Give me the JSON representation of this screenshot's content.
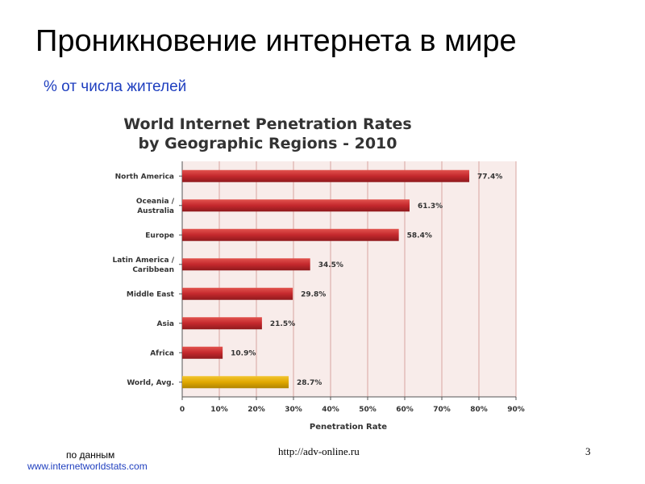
{
  "slide": {
    "title": "Проникновение интернета в мире",
    "subtitle": "% от числа жителей",
    "footer_note": "по данным",
    "footer_source": "www.internetworldstats.com",
    "footer_url": "http://adv-online.ru",
    "page_number": "3"
  },
  "chart_data": {
    "type": "bar",
    "orientation": "horizontal",
    "title_lines": [
      "World Internet Penetration Rates",
      "by Geographic Regions - 2010"
    ],
    "xlabel": "Penetration Rate",
    "ylabel": "",
    "xlim": [
      0,
      90
    ],
    "xticks": [
      "0",
      "10%",
      "20%",
      "30%",
      "40%",
      "50%",
      "60%",
      "70%",
      "80%",
      "90%"
    ],
    "grid": true,
    "categories": [
      [
        "North America"
      ],
      [
        "Oceania  /",
        "Australia"
      ],
      [
        "Europe"
      ],
      [
        "Latin America /",
        "Caribbean"
      ],
      [
        "Middle East"
      ],
      [
        "Asia"
      ],
      [
        "Africa"
      ],
      [
        "World, Avg."
      ]
    ],
    "values": [
      77.4,
      61.3,
      58.4,
      34.5,
      29.8,
      21.5,
      10.9,
      28.7
    ],
    "value_labels": [
      "77.4%",
      "61.3%",
      "58.4%",
      "34.5%",
      "29.8%",
      "21.5%",
      "10.9%",
      "28.7%"
    ],
    "colors": {
      "bar": "#c4282d",
      "bar_highlight": "#e0a800",
      "plot_background": "#f8ecea",
      "grid": "#d9a5a0"
    },
    "highlight_index": 7
  }
}
